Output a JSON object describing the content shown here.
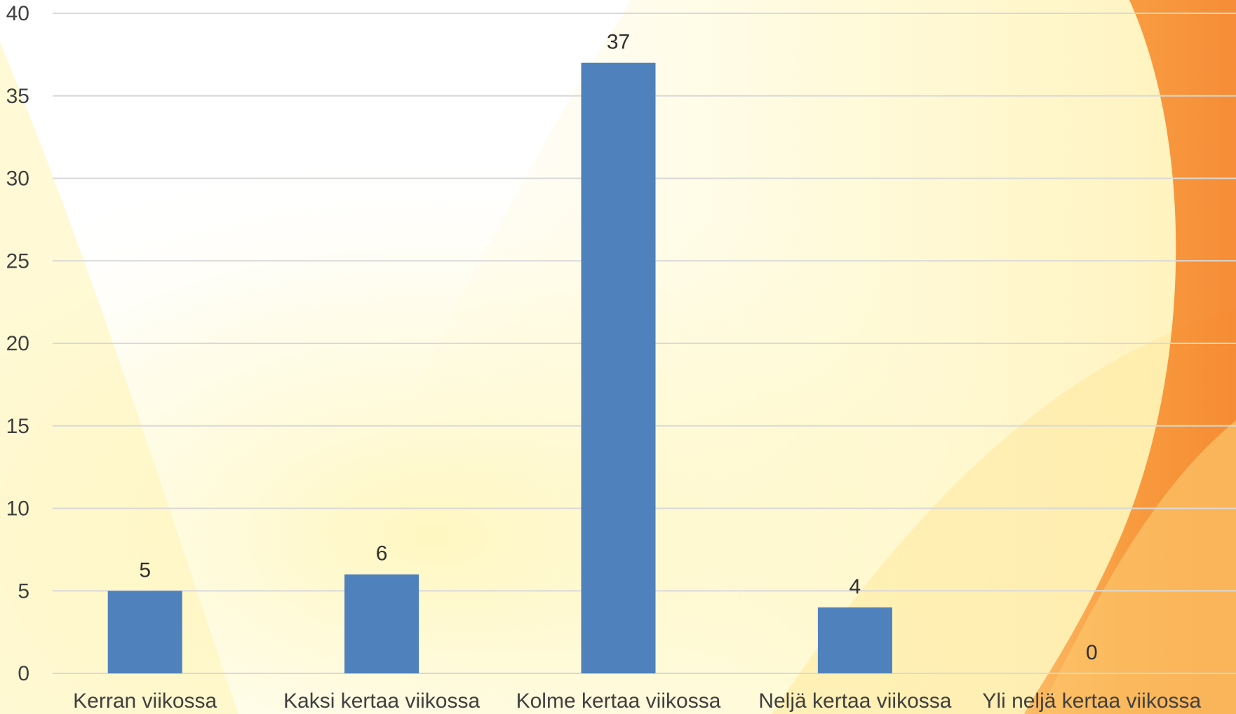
{
  "chart_data": {
    "type": "bar",
    "title": "",
    "xlabel": "",
    "ylabel": "",
    "categories": [
      "Kerran viikossa",
      "Kaksi kertaa viikossa",
      "Kolme kertaa viikossa",
      "Neljä kertaa viikossa",
      "Yli neljä kertaa viikossa"
    ],
    "values": [
      5,
      6,
      37,
      4,
      0
    ],
    "data_labels": [
      "5",
      "6",
      "37",
      "4",
      "0"
    ],
    "ylim": [
      0,
      40
    ],
    "yticks": [
      0,
      5,
      10,
      15,
      20,
      25,
      30,
      35,
      40
    ],
    "ytick_labels": [
      "0",
      "5",
      "10",
      "15",
      "20",
      "25",
      "30",
      "35",
      "40"
    ],
    "grid": true,
    "legend": "none"
  },
  "colors": {
    "bar": "#4f81bd",
    "gridline": "#d9d9d9",
    "axis_text": "#404040",
    "background_orange": "#f7902a",
    "background_yellow": "#fff3a8"
  }
}
